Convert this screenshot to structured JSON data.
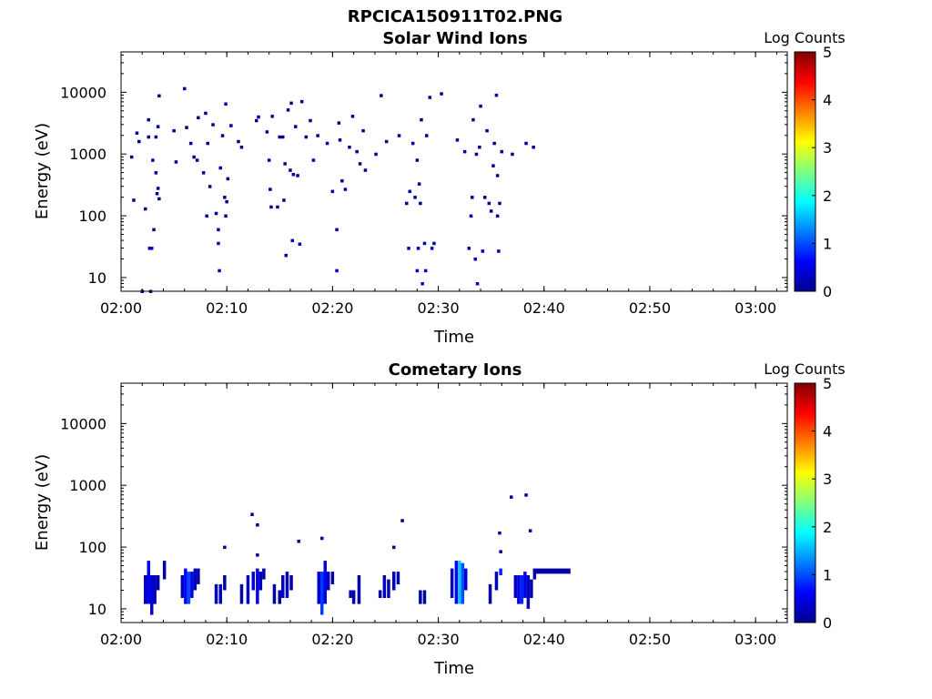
{
  "figure_title": "RPCICA150911T02.PNG",
  "colorbar_ticks": [
    "0",
    "1",
    "2",
    "3",
    "4",
    "5"
  ],
  "chart_data": [
    {
      "type": "heatmap",
      "title": "Solar Wind Ions",
      "xlabel": "Time",
      "ylabel": "Energy (eV)",
      "colorbar_label": "Log Counts",
      "colorbar_range": [
        0,
        5
      ],
      "colormap": "jet",
      "y_scale": "log",
      "xlim": [
        "02:00",
        "03:03"
      ],
      "ylim": [
        6,
        45000
      ],
      "x_ticks": [
        "02:00",
        "02:10",
        "02:20",
        "02:30",
        "02:40",
        "02:50",
        "03:00"
      ],
      "y_ticks": [
        "10",
        "100",
        "1000",
        "10000"
      ],
      "grid": false,
      "cells": [
        {
          "t": 1.0,
          "e": 900,
          "v": 0.1
        },
        {
          "t": 1.2,
          "e": 180,
          "v": 0.1
        },
        {
          "t": 1.5,
          "e": 2200,
          "v": 0.1
        },
        {
          "t": 1.7,
          "e": 1600,
          "v": 0.1
        },
        {
          "t": 2.0,
          "e": 6,
          "v": 0.1
        },
        {
          "t": 2.3,
          "e": 130,
          "v": 0.1
        },
        {
          "t": 2.6,
          "e": 3600,
          "v": 0.1
        },
        {
          "t": 2.6,
          "e": 1900,
          "v": 0.1
        },
        {
          "t": 2.9,
          "e": 30,
          "v": 0.3
        },
        {
          "t": 2.7,
          "e": 30,
          "v": 0.3
        },
        {
          "t": 2.8,
          "e": 6,
          "v": 0.1
        },
        {
          "t": 3.0,
          "e": 800,
          "v": 0.1
        },
        {
          "t": 3.1,
          "e": 60,
          "v": 0.2
        },
        {
          "t": 3.3,
          "e": 1900,
          "v": 0.1
        },
        {
          "t": 3.3,
          "e": 500,
          "v": 0.1
        },
        {
          "t": 3.4,
          "e": 230,
          "v": 0.1
        },
        {
          "t": 3.5,
          "e": 2800,
          "v": 0.1
        },
        {
          "t": 3.6,
          "e": 8800,
          "v": 0.1
        },
        {
          "t": 3.6,
          "e": 190,
          "v": 0.1
        },
        {
          "t": 3.5,
          "e": 280,
          "v": 0.1
        },
        {
          "t": 5.0,
          "e": 2400,
          "v": 0.1
        },
        {
          "t": 5.2,
          "e": 750,
          "v": 0.1
        },
        {
          "t": 6.0,
          "e": 11500,
          "v": 0.1
        },
        {
          "t": 6.2,
          "e": 2700,
          "v": 0.1
        },
        {
          "t": 6.6,
          "e": 1500,
          "v": 0.1
        },
        {
          "t": 6.9,
          "e": 900,
          "v": 0.1
        },
        {
          "t": 7.2,
          "e": 800,
          "v": 0.1
        },
        {
          "t": 7.3,
          "e": 3900,
          "v": 0.1
        },
        {
          "t": 7.8,
          "e": 500,
          "v": 0.1
        },
        {
          "t": 8.0,
          "e": 4600,
          "v": 0.1
        },
        {
          "t": 8.2,
          "e": 1500,
          "v": 0.1
        },
        {
          "t": 8.4,
          "e": 300,
          "v": 0.1
        },
        {
          "t": 8.1,
          "e": 100,
          "v": 0.1
        },
        {
          "t": 8.7,
          "e": 3000,
          "v": 0.1
        },
        {
          "t": 9.0,
          "e": 110,
          "v": 0.1
        },
        {
          "t": 9.2,
          "e": 60,
          "v": 0.2
        },
        {
          "t": 9.2,
          "e": 36,
          "v": 0.2
        },
        {
          "t": 9.3,
          "e": 13,
          "v": 0.3
        },
        {
          "t": 9.4,
          "e": 600,
          "v": 0.1
        },
        {
          "t": 9.6,
          "e": 2000,
          "v": 0.1
        },
        {
          "t": 9.8,
          "e": 200,
          "v": 0.1
        },
        {
          "t": 9.9,
          "e": 6500,
          "v": 0.1
        },
        {
          "t": 10.0,
          "e": 170,
          "v": 0.1
        },
        {
          "t": 10.1,
          "e": 400,
          "v": 0.1
        },
        {
          "t": 9.9,
          "e": 100,
          "v": 0.1
        },
        {
          "t": 10.4,
          "e": 2900,
          "v": 0.1
        },
        {
          "t": 11.1,
          "e": 1600,
          "v": 0.1
        },
        {
          "t": 11.4,
          "e": 1300,
          "v": 0.1
        },
        {
          "t": 12.8,
          "e": 3500,
          "v": 0.1
        },
        {
          "t": 13.0,
          "e": 4000,
          "v": 0.1
        },
        {
          "t": 13.8,
          "e": 2300,
          "v": 0.1
        },
        {
          "t": 14.0,
          "e": 800,
          "v": 0.1
        },
        {
          "t": 14.2,
          "e": 140,
          "v": 0.1
        },
        {
          "t": 14.1,
          "e": 270,
          "v": 0.1
        },
        {
          "t": 14.3,
          "e": 4100,
          "v": 0.1
        },
        {
          "t": 14.8,
          "e": 140,
          "v": 0.1
        },
        {
          "t": 15.0,
          "e": 1900,
          "v": 0.1
        },
        {
          "t": 15.3,
          "e": 1900,
          "v": 0.1
        },
        {
          "t": 15.5,
          "e": 700,
          "v": 0.1
        },
        {
          "t": 15.4,
          "e": 180,
          "v": 0.1
        },
        {
          "t": 15.6,
          "e": 23,
          "v": 0.2
        },
        {
          "t": 15.8,
          "e": 5200,
          "v": 0.1
        },
        {
          "t": 16.0,
          "e": 550,
          "v": 0.1
        },
        {
          "t": 16.1,
          "e": 6700,
          "v": 0.1
        },
        {
          "t": 16.2,
          "e": 40,
          "v": 0.2
        },
        {
          "t": 16.3,
          "e": 470,
          "v": 0.1
        },
        {
          "t": 16.5,
          "e": 2800,
          "v": 0.1
        },
        {
          "t": 16.7,
          "e": 450,
          "v": 0.1
        },
        {
          "t": 16.9,
          "e": 35,
          "v": 0.2
        },
        {
          "t": 17.1,
          "e": 7100,
          "v": 0.1
        },
        {
          "t": 17.5,
          "e": 1900,
          "v": 0.1
        },
        {
          "t": 17.9,
          "e": 3500,
          "v": 0.1
        },
        {
          "t": 18.2,
          "e": 800,
          "v": 0.1
        },
        {
          "t": 18.6,
          "e": 2000,
          "v": 0.1
        },
        {
          "t": 19.5,
          "e": 1500,
          "v": 0.1
        },
        {
          "t": 20.0,
          "e": 250,
          "v": 0.1
        },
        {
          "t": 20.4,
          "e": 60,
          "v": 0.3
        },
        {
          "t": 20.4,
          "e": 13,
          "v": 0.3
        },
        {
          "t": 20.6,
          "e": 3200,
          "v": 0.1
        },
        {
          "t": 20.7,
          "e": 1700,
          "v": 0.1
        },
        {
          "t": 20.9,
          "e": 370,
          "v": 0.1
        },
        {
          "t": 21.2,
          "e": 270,
          "v": 0.1
        },
        {
          "t": 21.6,
          "e": 1300,
          "v": 0.1
        },
        {
          "t": 21.9,
          "e": 4100,
          "v": 0.1
        },
        {
          "t": 22.3,
          "e": 1100,
          "v": 0.1
        },
        {
          "t": 22.6,
          "e": 700,
          "v": 0.1
        },
        {
          "t": 22.9,
          "e": 2400,
          "v": 0.1
        },
        {
          "t": 23.1,
          "e": 550,
          "v": 0.1
        },
        {
          "t": 24.1,
          "e": 1000,
          "v": 0.1
        },
        {
          "t": 24.6,
          "e": 8900,
          "v": 0.1
        },
        {
          "t": 25.1,
          "e": 1600,
          "v": 0.1
        },
        {
          "t": 26.3,
          "e": 2000,
          "v": 0.1
        },
        {
          "t": 27.0,
          "e": 160,
          "v": 0.1
        },
        {
          "t": 27.2,
          "e": 30,
          "v": 0.2
        },
        {
          "t": 27.3,
          "e": 250,
          "v": 0.1
        },
        {
          "t": 27.6,
          "e": 1500,
          "v": 0.1
        },
        {
          "t": 27.8,
          "e": 200,
          "v": 0.1
        },
        {
          "t": 28.0,
          "e": 800,
          "v": 0.1
        },
        {
          "t": 28.1,
          "e": 30,
          "v": 0.2
        },
        {
          "t": 28.0,
          "e": 13,
          "v": 0.3
        },
        {
          "t": 28.2,
          "e": 330,
          "v": 0.1
        },
        {
          "t": 28.3,
          "e": 160,
          "v": 0.1
        },
        {
          "t": 28.4,
          "e": 3600,
          "v": 0.1
        },
        {
          "t": 28.5,
          "e": 8,
          "v": 0.4
        },
        {
          "t": 28.7,
          "e": 36,
          "v": 0.2
        },
        {
          "t": 28.8,
          "e": 13,
          "v": 0.3
        },
        {
          "t": 28.9,
          "e": 2000,
          "v": 0.1
        },
        {
          "t": 29.2,
          "e": 8300,
          "v": 0.1
        },
        {
          "t": 29.4,
          "e": 30,
          "v": 0.3
        },
        {
          "t": 29.6,
          "e": 36,
          "v": 0.2
        },
        {
          "t": 30.3,
          "e": 9500,
          "v": 0.1
        },
        {
          "t": 31.8,
          "e": 1700,
          "v": 0.1
        },
        {
          "t": 32.5,
          "e": 1100,
          "v": 0.1
        },
        {
          "t": 32.9,
          "e": 30,
          "v": 0.2
        },
        {
          "t": 33.1,
          "e": 100,
          "v": 0.1
        },
        {
          "t": 33.2,
          "e": 200,
          "v": 0.1
        },
        {
          "t": 33.3,
          "e": 3600,
          "v": 0.1
        },
        {
          "t": 33.5,
          "e": 20,
          "v": 0.3
        },
        {
          "t": 33.7,
          "e": 8,
          "v": 0.4
        },
        {
          "t": 33.6,
          "e": 1000,
          "v": 0.1
        },
        {
          "t": 33.9,
          "e": 1300,
          "v": 0.1
        },
        {
          "t": 34.0,
          "e": 6000,
          "v": 0.1
        },
        {
          "t": 34.2,
          "e": 27,
          "v": 0.2
        },
        {
          "t": 34.4,
          "e": 200,
          "v": 0.1
        },
        {
          "t": 34.6,
          "e": 2400,
          "v": 0.1
        },
        {
          "t": 34.8,
          "e": 160,
          "v": 0.1
        },
        {
          "t": 35.0,
          "e": 120,
          "v": 0.1
        },
        {
          "t": 35.2,
          "e": 650,
          "v": 0.1
        },
        {
          "t": 35.3,
          "e": 1500,
          "v": 0.1
        },
        {
          "t": 35.5,
          "e": 9000,
          "v": 0.2
        },
        {
          "t": 35.6,
          "e": 450,
          "v": 0.1
        },
        {
          "t": 35.7,
          "e": 27,
          "v": 0.2
        },
        {
          "t": 35.6,
          "e": 100,
          "v": 0.1
        },
        {
          "t": 35.8,
          "e": 160,
          "v": 0.1
        },
        {
          "t": 36.0,
          "e": 1100,
          "v": 0.1
        },
        {
          "t": 37.0,
          "e": 1000,
          "v": 0.1
        },
        {
          "t": 38.3,
          "e": 1500,
          "v": 0.1
        },
        {
          "t": 39.0,
          "e": 1300,
          "v": 0.1
        }
      ]
    },
    {
      "type": "heatmap",
      "title": "Cometary Ions",
      "xlabel": "Time",
      "ylabel": "Energy (eV)",
      "colorbar_label": "Log Counts",
      "colorbar_range": [
        0,
        5
      ],
      "colormap": "jet",
      "y_scale": "log",
      "xlim": [
        "02:00",
        "03:03"
      ],
      "ylim": [
        6,
        45000
      ],
      "x_ticks": [
        "02:00",
        "02:10",
        "02:20",
        "02:30",
        "02:40",
        "02:50",
        "03:00"
      ],
      "y_ticks": [
        "10",
        "100",
        "1000",
        "10000"
      ],
      "grid": false,
      "columns": [
        {
          "t": 2.3,
          "lo": 12,
          "hi": 35,
          "v": 0.3
        },
        {
          "t": 2.6,
          "lo": 12,
          "hi": 60,
          "v": 0.6
        },
        {
          "t": 2.9,
          "lo": 8,
          "hi": 35,
          "v": 0.4
        },
        {
          "t": 3.2,
          "lo": 12,
          "hi": 35,
          "v": 0.3
        },
        {
          "t": 3.5,
          "lo": 20,
          "hi": 35,
          "v": 0.2
        },
        {
          "t": 4.1,
          "lo": 30,
          "hi": 60,
          "v": 0.2
        },
        {
          "t": 5.8,
          "lo": 15,
          "hi": 35,
          "v": 0.3
        },
        {
          "t": 6.1,
          "lo": 12,
          "hi": 45,
          "v": 0.6
        },
        {
          "t": 6.4,
          "lo": 12,
          "hi": 40,
          "v": 1.0
        },
        {
          "t": 6.7,
          "lo": 15,
          "hi": 40,
          "v": 0.5
        },
        {
          "t": 7.0,
          "lo": 20,
          "hi": 45,
          "v": 0.3
        },
        {
          "t": 7.3,
          "lo": 25,
          "hi": 45,
          "v": 0.2
        },
        {
          "t": 9.0,
          "lo": 12,
          "hi": 25,
          "v": 0.3
        },
        {
          "t": 9.4,
          "lo": 12,
          "hi": 25,
          "v": 0.3
        },
        {
          "t": 9.8,
          "lo": 20,
          "hi": 35,
          "v": 0.2
        },
        {
          "t": 11.4,
          "lo": 12,
          "hi": 25,
          "v": 0.2
        },
        {
          "t": 12.0,
          "lo": 12,
          "hi": 35,
          "v": 0.3
        },
        {
          "t": 12.5,
          "lo": 20,
          "hi": 40,
          "v": 0.4
        },
        {
          "t": 12.9,
          "lo": 12,
          "hi": 45,
          "v": 0.5
        },
        {
          "t": 13.2,
          "lo": 20,
          "hi": 40,
          "v": 0.3
        },
        {
          "t": 13.5,
          "lo": 30,
          "hi": 45,
          "v": 0.2
        },
        {
          "t": 14.5,
          "lo": 12,
          "hi": 25,
          "v": 0.2
        },
        {
          "t": 15.0,
          "lo": 12,
          "hi": 20,
          "v": 0.2
        },
        {
          "t": 15.3,
          "lo": 15,
          "hi": 35,
          "v": 0.3
        },
        {
          "t": 15.7,
          "lo": 15,
          "hi": 40,
          "v": 0.3
        },
        {
          "t": 16.1,
          "lo": 20,
          "hi": 35,
          "v": 0.2
        },
        {
          "t": 18.7,
          "lo": 12,
          "hi": 40,
          "v": 0.4
        },
        {
          "t": 19.0,
          "lo": 8,
          "hi": 40,
          "v": 0.9
        },
        {
          "t": 19.3,
          "lo": 12,
          "hi": 60,
          "v": 0.5
        },
        {
          "t": 19.6,
          "lo": 20,
          "hi": 40,
          "v": 0.3
        },
        {
          "t": 20.0,
          "lo": 25,
          "hi": 40,
          "v": 0.2
        },
        {
          "t": 21.7,
          "lo": 15,
          "hi": 20,
          "v": 0.2
        },
        {
          "t": 22.0,
          "lo": 12,
          "hi": 20,
          "v": 0.2
        },
        {
          "t": 22.5,
          "lo": 12,
          "hi": 35,
          "v": 0.2
        },
        {
          "t": 24.5,
          "lo": 15,
          "hi": 20,
          "v": 0.2
        },
        {
          "t": 24.9,
          "lo": 15,
          "hi": 35,
          "v": 0.3
        },
        {
          "t": 25.3,
          "lo": 15,
          "hi": 30,
          "v": 0.3
        },
        {
          "t": 25.8,
          "lo": 20,
          "hi": 40,
          "v": 0.3
        },
        {
          "t": 26.2,
          "lo": 25,
          "hi": 40,
          "v": 0.2
        },
        {
          "t": 28.3,
          "lo": 12,
          "hi": 20,
          "v": 0.2
        },
        {
          "t": 28.7,
          "lo": 12,
          "hi": 20,
          "v": 0.2
        },
        {
          "t": 31.3,
          "lo": 15,
          "hi": 45,
          "v": 0.3
        },
        {
          "t": 31.7,
          "lo": 12,
          "hi": 60,
          "v": 0.6
        },
        {
          "t": 32.0,
          "lo": 12,
          "hi": 60,
          "v": 1.6
        },
        {
          "t": 32.3,
          "lo": 12,
          "hi": 55,
          "v": 1.0
        },
        {
          "t": 32.6,
          "lo": 20,
          "hi": 45,
          "v": 0.4
        },
        {
          "t": 34.9,
          "lo": 12,
          "hi": 25,
          "v": 0.2
        },
        {
          "t": 35.5,
          "lo": 20,
          "hi": 40,
          "v": 0.3
        },
        {
          "t": 35.9,
          "lo": 35,
          "hi": 45,
          "v": 0.8
        },
        {
          "t": 37.3,
          "lo": 15,
          "hi": 35,
          "v": 0.3
        },
        {
          "t": 37.6,
          "lo": 12,
          "hi": 35,
          "v": 0.5
        },
        {
          "t": 37.9,
          "lo": 12,
          "hi": 35,
          "v": 0.8
        },
        {
          "t": 38.2,
          "lo": 15,
          "hi": 40,
          "v": 0.5
        },
        {
          "t": 38.5,
          "lo": 10,
          "hi": 35,
          "v": 0.3
        },
        {
          "t": 38.8,
          "lo": 15,
          "hi": 30,
          "v": 0.2
        },
        {
          "t": 39.1,
          "lo": 30,
          "hi": 45,
          "v": 0.2
        }
      ],
      "band": {
        "t_start": 39.2,
        "t_end": 42.5,
        "lo": 37,
        "hi": 45,
        "v": 0.2
      },
      "cells": [
        {
          "t": 9.8,
          "e": 100,
          "v": 0.1
        },
        {
          "t": 12.4,
          "e": 340,
          "v": 0.1
        },
        {
          "t": 12.9,
          "e": 230,
          "v": 0.1
        },
        {
          "t": 12.9,
          "e": 75,
          "v": 0.1
        },
        {
          "t": 16.8,
          "e": 125,
          "v": 0.1
        },
        {
          "t": 19.0,
          "e": 140,
          "v": 0.1
        },
        {
          "t": 25.8,
          "e": 100,
          "v": 0.1
        },
        {
          "t": 26.6,
          "e": 270,
          "v": 0.1
        },
        {
          "t": 35.8,
          "e": 170,
          "v": 0.1
        },
        {
          "t": 35.9,
          "e": 85,
          "v": 0.1
        },
        {
          "t": 36.9,
          "e": 650,
          "v": 0.1
        },
        {
          "t": 38.3,
          "e": 700,
          "v": 0.1
        },
        {
          "t": 38.7,
          "e": 185,
          "v": 0.1
        }
      ]
    }
  ]
}
